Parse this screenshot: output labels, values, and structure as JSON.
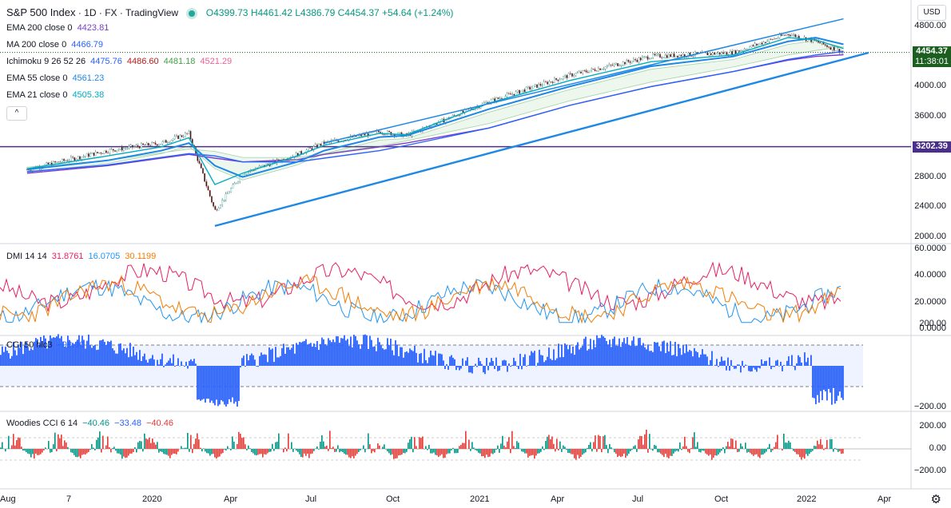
{
  "header": {
    "symbol": "S&P 500 Index",
    "interval": "1D",
    "exchange": "FX",
    "source": "TradingView",
    "open": "O4399.73",
    "high": "H4461.42",
    "low": "L4386.79",
    "close": "C4454.37",
    "change": "+54.64 (+1.24%)",
    "currency_button": "USD"
  },
  "indicators": [
    {
      "label": "EMA 200 close 0",
      "values": [
        {
          "v": "4423.81",
          "color": "#7b3fc4"
        }
      ]
    },
    {
      "label": "MA 200 close 0",
      "values": [
        {
          "v": "4466.79",
          "color": "#2962ff"
        }
      ]
    },
    {
      "label": "Ichimoku 9 26 52 26",
      "values": [
        {
          "v": "4475.76",
          "color": "#2962ff"
        },
        {
          "v": "4486.60",
          "color": "#b71c1c"
        },
        {
          "v": "4481.18",
          "color": "#43a047"
        },
        {
          "v": "4521.29",
          "color": "#f06292"
        }
      ]
    },
    {
      "label": "EMA 55 close 0",
      "values": [
        {
          "v": "4561.23",
          "color": "#1e88e5"
        }
      ]
    },
    {
      "label": "EMA 21 close 0",
      "values": [
        {
          "v": "4505.38",
          "color": "#00acc1"
        }
      ]
    }
  ],
  "collapse_glyph": "^",
  "price_axis": {
    "ticks": [
      "4800.00",
      "4400.00",
      "4000.00",
      "3600.00",
      "3200.00",
      "2800.00",
      "2400.00",
      "2000.00"
    ],
    "last_price": "4454.37",
    "countdown": "11:38:01",
    "hline_price": "3202.39",
    "last_price_color": "#1b5e20",
    "hline_color": "#4a2e8c"
  },
  "time_axis": [
    "Aug",
    "7",
    "2020",
    "Apr",
    "Jul",
    "Oct",
    "2021",
    "Apr",
    "Jul",
    "Oct",
    "2022",
    "Apr"
  ],
  "panes": {
    "dmi": {
      "label": "DMI 14 14",
      "values": [
        {
          "v": "31.8761",
          "color": "#e91e63"
        },
        {
          "v": "16.0705",
          "color": "#2196f3"
        },
        {
          "v": "30.1199",
          "color": "#f57c00"
        }
      ],
      "ticks": [
        "60.0000",
        "40.0000",
        "20.0000",
        "0.0000"
      ]
    },
    "cci": {
      "label": "CCI 50 hlc3",
      "values": [
        {
          "v": "−98.90",
          "color": "#2962ff"
        }
      ],
      "ticks": [
        "200.00",
        "−200.00"
      ]
    },
    "woodies": {
      "label": "Woodies CCI 6 14",
      "values": [
        {
          "v": "−40.46",
          "color": "#009688"
        },
        {
          "v": "−33.48",
          "color": "#2962ff"
        },
        {
          "v": "−40.46",
          "color": "#e53935"
        }
      ],
      "ticks": [
        "200.00",
        "0.00",
        "−200.00"
      ]
    }
  },
  "chart_data": {
    "type": "line",
    "title": "S&P 500 Index · 1D · FX",
    "x": [
      "2019-08",
      "2019-11",
      "2020-01",
      "2020-02",
      "2020-03",
      "2020-04",
      "2020-06",
      "2020-07",
      "2020-09",
      "2020-10",
      "2021-01",
      "2021-04",
      "2021-07",
      "2021-10",
      "2021-12",
      "2022-01",
      "2022-02"
    ],
    "series": [
      {
        "name": "S&P 500",
        "values": [
          2900,
          3150,
          3250,
          3380,
          2350,
          2850,
          3100,
          3250,
          3400,
          3350,
          3800,
          4150,
          4400,
          4450,
          4700,
          4600,
          4454
        ]
      },
      {
        "name": "EMA 200",
        "values": [
          2850,
          2950,
          3050,
          3100,
          3050,
          3000,
          3030,
          3100,
          3200,
          3250,
          3450,
          3750,
          4000,
          4200,
          4350,
          4400,
          4424
        ]
      },
      {
        "name": "MA 200",
        "values": [
          2870,
          2960,
          3060,
          3110,
          3080,
          3000,
          3000,
          3050,
          3150,
          3220,
          3450,
          3750,
          4000,
          4200,
          4360,
          4420,
          4467
        ]
      },
      {
        "name": "EMA 55",
        "values": [
          2900,
          3020,
          3150,
          3250,
          2950,
          2800,
          3000,
          3150,
          3330,
          3350,
          3700,
          4000,
          4270,
          4400,
          4600,
          4650,
          4561
        ]
      },
      {
        "name": "EMA 21",
        "values": [
          2910,
          3080,
          3200,
          3320,
          2700,
          2850,
          3080,
          3220,
          3380,
          3360,
          3780,
          4080,
          4330,
          4420,
          4650,
          4620,
          4505
        ]
      }
    ],
    "trend_channel": {
      "upper": [
        [
          "2020-07",
          3250
        ],
        [
          "2022-02",
          4900
        ]
      ],
      "lower": [
        [
          "2020-03",
          2150
        ],
        [
          "2022-03",
          4450
        ]
      ]
    },
    "hline": 3202.39,
    "ylim": [
      2000,
      4950
    ],
    "grid": true
  }
}
